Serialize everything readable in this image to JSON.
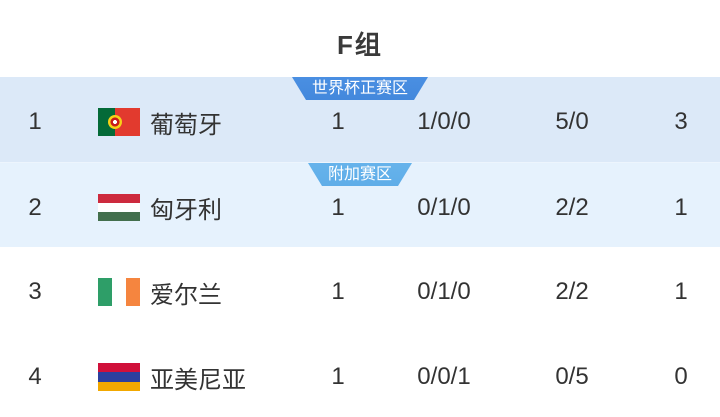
{
  "header": {
    "title": "F组"
  },
  "colors": {
    "row1_bg": "#dce9f8",
    "row2_bg": "#e6f2fd",
    "badge_worldcup": "#4a8fe2",
    "badge_playoff": "#66b3eb",
    "badge_text": "#ffffff",
    "text": "#333333"
  },
  "table": {
    "rows": [
      {
        "rank": "1",
        "team": "葡萄牙",
        "played": "1",
        "record": "1/0/0",
        "goals": "5/0",
        "points": "3",
        "zone_badge": {
          "label": "世界杯正赛区"
        },
        "flag": {
          "country": "portugal",
          "orientation": "vertical",
          "stripes": [
            {
              "color": "#046a38",
              "size": 2
            },
            {
              "color": "#e23a2e",
              "size": 3
            }
          ],
          "emblem": true
        }
      },
      {
        "rank": "2",
        "team": "匈牙利",
        "played": "1",
        "record": "0/1/0",
        "goals": "2/2",
        "points": "1",
        "zone_badge": {
          "label": "附加赛区"
        },
        "flag": {
          "country": "hungary",
          "orientation": "horizontal",
          "stripes": [
            {
              "color": "#cd2a3e",
              "size": 1
            },
            {
              "color": "#ffffff",
              "size": 1
            },
            {
              "color": "#436f4d",
              "size": 1
            }
          ],
          "emblem": false
        }
      },
      {
        "rank": "3",
        "team": "爱尔兰",
        "played": "1",
        "record": "0/1/0",
        "goals": "2/2",
        "points": "1",
        "zone_badge": null,
        "flag": {
          "country": "ireland",
          "orientation": "vertical",
          "stripes": [
            {
              "color": "#2e9e68",
              "size": 1
            },
            {
              "color": "#ffffff",
              "size": 1
            },
            {
              "color": "#f5853f",
              "size": 1
            }
          ],
          "emblem": false
        }
      },
      {
        "rank": "4",
        "team": "亚美尼亚",
        "played": "1",
        "record": "0/0/1",
        "goals": "0/5",
        "points": "0",
        "zone_badge": null,
        "flag": {
          "country": "armenia",
          "orientation": "horizontal",
          "stripes": [
            {
              "color": "#d0103a",
              "size": 1
            },
            {
              "color": "#2b3f9e",
              "size": 1
            },
            {
              "color": "#f2a800",
              "size": 1
            }
          ],
          "emblem": false
        }
      }
    ]
  }
}
